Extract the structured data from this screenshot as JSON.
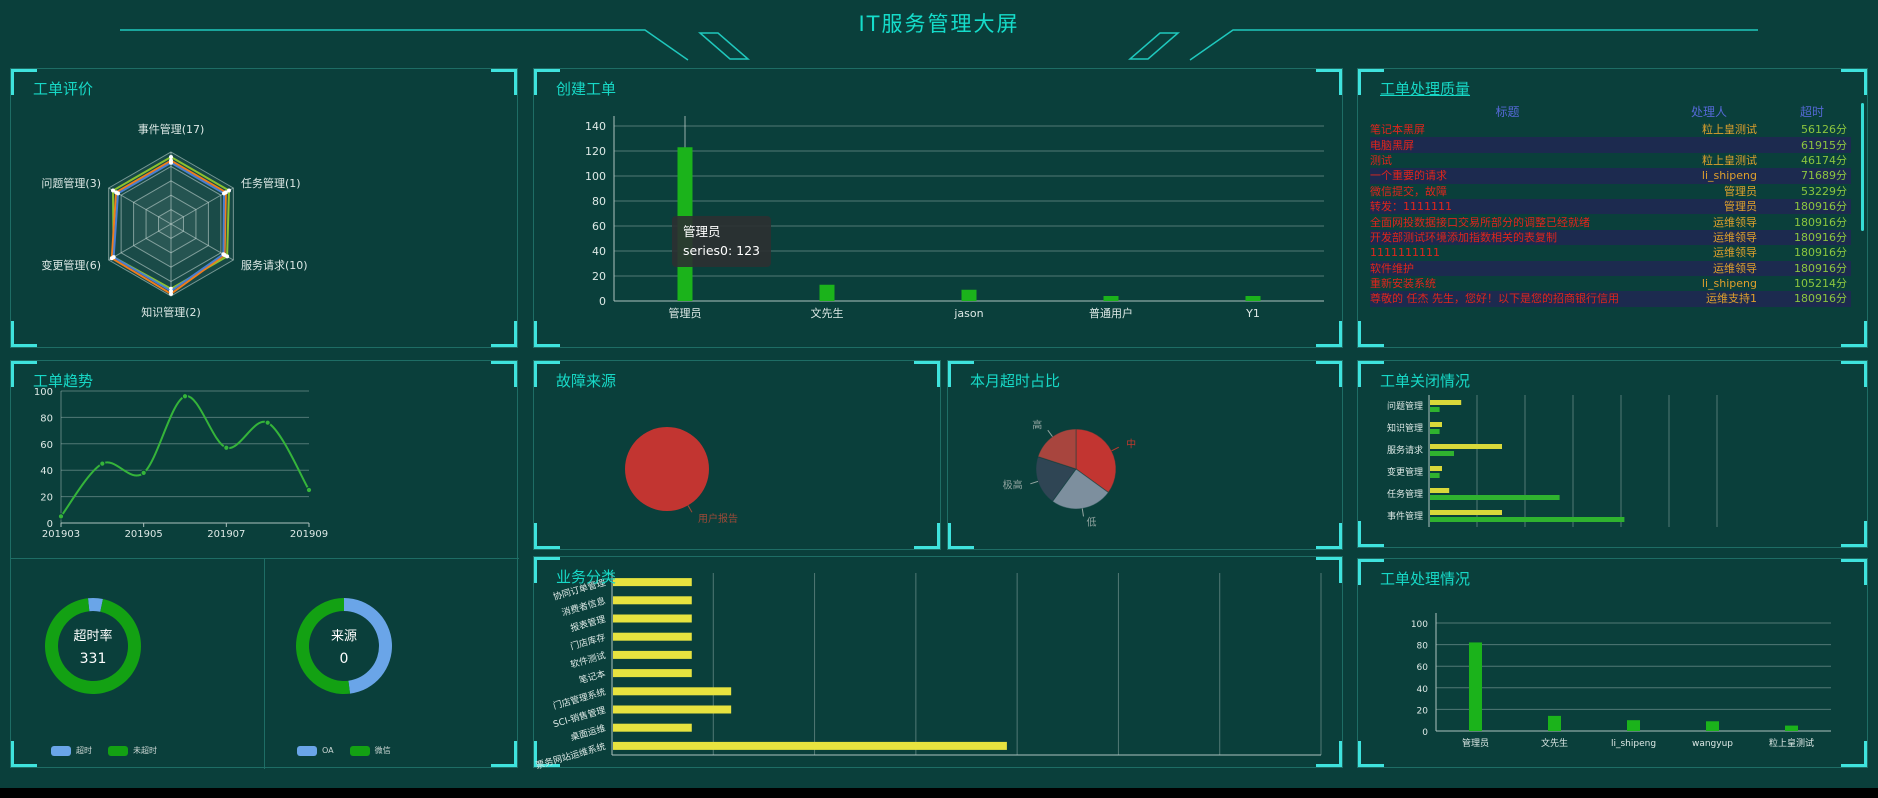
{
  "header": {
    "title": "IT服务管理大屏"
  },
  "panels": {
    "evaluation": {
      "title": "工单评价"
    },
    "create": {
      "title": "创建工单"
    },
    "quality": {
      "title": "工单处理质量"
    },
    "trend": {
      "title": "工单趋势"
    },
    "fault": {
      "title": "故障来源"
    },
    "month_overtime": {
      "title": "本月超时占比"
    },
    "biz": {
      "title": "业务分类"
    },
    "close": {
      "title": "工单关闭情况"
    },
    "handle": {
      "title": "工单处理情况"
    }
  },
  "tooltip": {
    "name": "管理员",
    "series_line": "series0: 123"
  },
  "quality_table": {
    "columns": [
      "标题",
      "处理人",
      "超时"
    ],
    "rows": [
      {
        "title": "笔记本黑屏",
        "handler": "粒上皇测试",
        "overtime": "56126分"
      },
      {
        "title": "电脑黑屏",
        "handler": "",
        "overtime": "61915分"
      },
      {
        "title": "测试",
        "handler": "粒上皇测试",
        "overtime": "46174分"
      },
      {
        "title": "一个重要的请求",
        "handler": "li_shipeng",
        "overtime": "71689分"
      },
      {
        "title": "微信提交，故障",
        "handler": "管理员",
        "overtime": "53229分"
      },
      {
        "title": "转发：1111111",
        "handler": "管理员",
        "overtime": "180916分"
      },
      {
        "title": "全面网投数据接口交易所部分的调整已经就绪",
        "handler": "运维领导",
        "overtime": "180916分"
      },
      {
        "title": "开发部测试环境添加指数相关的表复制",
        "handler": "运维领导",
        "overtime": "180916分"
      },
      {
        "title": "1111111111",
        "handler": "运维领导",
        "overtime": "180916分"
      },
      {
        "title": "软件维护",
        "handler": "运维领导",
        "overtime": "180916分"
      },
      {
        "title": "重新安装系统",
        "handler": "li_shipeng",
        "overtime": "105214分"
      },
      {
        "title": "尊敬的 任杰 先生，您好！以下是您的招商银行信用",
        "handler": "运维支持1",
        "overtime": "180916分"
      }
    ]
  },
  "chart_data": [
    {
      "id": "evaluation_radar",
      "type": "radar",
      "max": 1,
      "indicators": [
        {
          "label": "事件管理(17)"
        },
        {
          "label": "任务管理(1)"
        },
        {
          "label": "服务请求(10)"
        },
        {
          "label": "知识管理(2)"
        },
        {
          "label": "变更管理(6)"
        },
        {
          "label": "问题管理(3)"
        }
      ],
      "series": [
        {
          "name": "series-green",
          "color": "#8bc12f",
          "values": [
            0.93,
            0.93,
            0.9,
            0.9,
            0.92,
            0.93
          ]
        },
        {
          "name": "series-orange",
          "color": "#f07c1c",
          "values": [
            0.88,
            0.88,
            0.86,
            0.97,
            0.95,
            0.88
          ]
        },
        {
          "name": "series-blue",
          "color": "#4a7ed0",
          "values": [
            0.85,
            0.85,
            0.84,
            0.93,
            0.92,
            0.85
          ]
        }
      ]
    },
    {
      "id": "create_bar",
      "type": "bar",
      "series_name": "series0",
      "categories": [
        "管理员",
        "文先生",
        "jason",
        "普通用户",
        "Y1"
      ],
      "values": [
        123,
        13,
        9,
        4,
        4
      ],
      "ylim": [
        0,
        140
      ],
      "yticks": [
        0,
        20,
        40,
        60,
        80,
        100,
        120,
        140
      ],
      "color": "#1bb31b",
      "grid": true
    },
    {
      "id": "trend_line",
      "type": "line",
      "x": [
        "201903",
        "201904",
        "201905",
        "201906",
        "201907",
        "201908",
        "201909"
      ],
      "values": [
        5,
        45,
        38,
        96,
        57,
        76,
        25
      ],
      "x_shown": [
        "201903",
        "201905",
        "201907",
        "201909"
      ],
      "ylim": [
        0,
        100
      ],
      "yticks": [
        0,
        20,
        40,
        60,
        80,
        100
      ],
      "color": "#35b43a",
      "grid": true
    },
    {
      "id": "overtime_gauge",
      "type": "donut",
      "center_label": "超时率",
      "center_value": "331",
      "segments": [
        {
          "label": "超时",
          "value": 5,
          "color": "#6aa5e8"
        },
        {
          "label": "未超时",
          "value": 95,
          "color": "#13a113"
        }
      ]
    },
    {
      "id": "source_gauge",
      "type": "donut",
      "center_label": "来源",
      "center_value": "0",
      "segments": [
        {
          "label": "OA",
          "value": 48,
          "color": "#6aa5e8"
        },
        {
          "label": "微信",
          "value": 52,
          "color": "#13a113"
        }
      ]
    },
    {
      "id": "fault_pie",
      "type": "pie",
      "slices": [
        {
          "label": "用户报告",
          "value": 100,
          "color": "#c23531",
          "label_color": "#9c4a38"
        }
      ]
    },
    {
      "id": "month_overtime_pie",
      "type": "pie",
      "slices": [
        {
          "label": "中",
          "value": 35,
          "color": "#c23531",
          "label_color": "#c0392e"
        },
        {
          "label": "低",
          "value": 25,
          "color": "#7d8f9e",
          "label_color": "#93a5a1"
        },
        {
          "label": "极高",
          "value": 20,
          "color": "#2f4554",
          "label_color": "#93a5a1"
        },
        {
          "label": "高",
          "value": 20,
          "color": "#a8453e",
          "label_color": "#93a5a1"
        }
      ]
    },
    {
      "id": "biz_barh",
      "type": "barh",
      "categories": [
        "协同订单管理",
        "消费者信息",
        "报表管理",
        "门店库存",
        "软件测试",
        "笔记本",
        "门店管理系统",
        "SCI-销售管理",
        "桌面运维",
        "票务网站运维系统"
      ],
      "values": [
        2,
        2,
        2,
        2,
        2,
        2,
        3,
        3,
        2,
        10
      ],
      "xmax": 18,
      "color": "#e7e33f",
      "grid": true
    },
    {
      "id": "close_barh",
      "type": "barh-multi",
      "categories": [
        "问题管理",
        "知识管理",
        "服务请求",
        "变更管理",
        "任务管理",
        "事件管理"
      ],
      "xmax": 12,
      "series": [
        {
          "name": "series-yellow",
          "color": "#d9d93a",
          "values": [
            1.3,
            0.5,
            3,
            0.5,
            0.8,
            3
          ]
        },
        {
          "name": "series-green",
          "color": "#2fb32f",
          "values": [
            0.4,
            0.4,
            1,
            0.4,
            5.4,
            8.1
          ]
        }
      ],
      "grid": true
    },
    {
      "id": "handle_bar",
      "type": "bar",
      "categories": [
        "管理员",
        "文先生",
        "li_shipeng",
        "wangyup",
        "粒上皇测试"
      ],
      "values": [
        82,
        14,
        10,
        9,
        5
      ],
      "ylim": [
        0,
        100
      ],
      "yticks": [
        0,
        20,
        40,
        60,
        80,
        100
      ],
      "color": "#1bb31b",
      "grid": true
    }
  ],
  "colors": {
    "background": "#0a3f3b",
    "accent_cyan": "#3fe3dd",
    "panel_title": "#17d8c6",
    "bar_green": "#1bb31b",
    "line_green": "#35b43a",
    "donut_green": "#13a113",
    "donut_blue": "#6aa5e8",
    "bar_yellow": "#e7e33f",
    "pie_red": "#c23531",
    "table_title_red": "#e0251c",
    "table_handler_orange": "#dfa02c",
    "table_overtime_green": "#8cc63f",
    "table_header_blue": "#5468d4"
  }
}
